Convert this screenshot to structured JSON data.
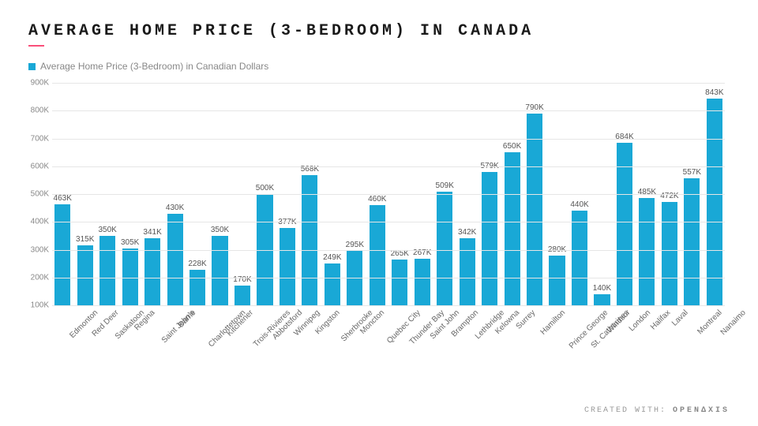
{
  "title": "AVERAGE HOME PRICE (3-BEDROOM) IN CANADA",
  "accent_color": "#f94f7a",
  "legend": {
    "marker_color": "#19a8d6",
    "label": "Average Home Price (3-Bedroom) in Canadian Dollars"
  },
  "footer": {
    "prefix": "CREATED WITH:",
    "brand": "OPEN∆XIS"
  },
  "chart": {
    "type": "bar",
    "bar_color": "#19a8d6",
    "background_color": "#ffffff",
    "grid_color": "#e6e6e6",
    "label_color": "#666666",
    "value_fontsize": 10,
    "label_fontsize": 10,
    "y_axis": {
      "min": 100,
      "max": 900,
      "ticks": [
        100,
        200,
        300,
        400,
        500,
        600,
        700,
        800,
        900
      ],
      "tick_labels": [
        "100K",
        "200K",
        "300K",
        "400K",
        "500K",
        "600K",
        "700K",
        "800K",
        "900K"
      ]
    },
    "series": [
      {
        "city": "Edmonton",
        "value": 463,
        "label": "463K"
      },
      {
        "city": "Red Deer",
        "value": 315,
        "label": "315K"
      },
      {
        "city": "Saskatoon",
        "value": 350,
        "label": "350K"
      },
      {
        "city": "Regina",
        "value": 305,
        "label": "305K"
      },
      {
        "city": "Saint John's",
        "value": 341,
        "label": "341K"
      },
      {
        "city": "Barrie",
        "value": 430,
        "label": "430K"
      },
      {
        "city": "Charlottetown",
        "value": 228,
        "label": "228K"
      },
      {
        "city": "Kitchener",
        "value": 350,
        "label": "350K"
      },
      {
        "city": "Trois-Rivieres",
        "value": 170,
        "label": "170K"
      },
      {
        "city": "Abbotsford",
        "value": 500,
        "label": "500K"
      },
      {
        "city": "Winnipeg",
        "value": 377,
        "label": "377K"
      },
      {
        "city": "Kingston",
        "value": 568,
        "label": "568K"
      },
      {
        "city": "Sherbrooke",
        "value": 249,
        "label": "249K"
      },
      {
        "city": "Moncton",
        "value": 295,
        "label": "295K"
      },
      {
        "city": "Quebec City",
        "value": 460,
        "label": "460K"
      },
      {
        "city": "Thunder Bay",
        "value": 265,
        "label": "265K"
      },
      {
        "city": "Saint John",
        "value": 267,
        "label": "267K"
      },
      {
        "city": "Brampton",
        "value": 509,
        "label": "509K"
      },
      {
        "city": "Lethbridge",
        "value": 342,
        "label": "342K"
      },
      {
        "city": "Kelowna",
        "value": 579,
        "label": "579K"
      },
      {
        "city": "Surrey",
        "value": 650,
        "label": "650K"
      },
      {
        "city": "Hamilton",
        "value": 790,
        "label": "790K"
      },
      {
        "city": "Prince George",
        "value": 280,
        "label": "280K"
      },
      {
        "city": "St. Catharines",
        "value": 440,
        "label": "440K"
      },
      {
        "city": "Windsor",
        "value": 140,
        "label": "140K"
      },
      {
        "city": "London",
        "value": 684,
        "label": "684K"
      },
      {
        "city": "Halifax",
        "value": 485,
        "label": "485K"
      },
      {
        "city": "Laval",
        "value": 472,
        "label": "472K"
      },
      {
        "city": "Montreal",
        "value": 557,
        "label": "557K"
      },
      {
        "city": "Nanaimo",
        "value": 843,
        "label": "843K"
      }
    ]
  }
}
